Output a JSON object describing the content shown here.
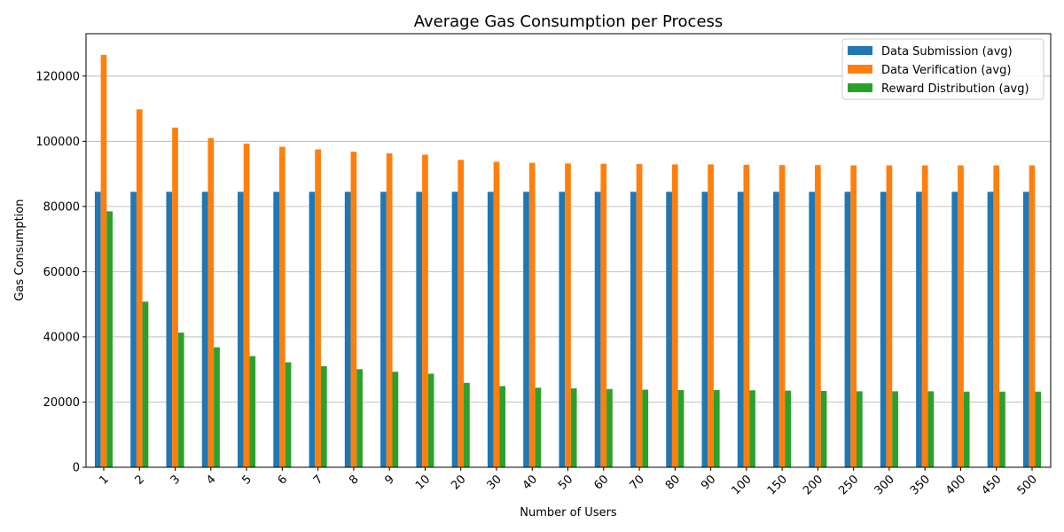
{
  "chart_data": {
    "type": "bar",
    "title": "Average Gas Consumption per Process",
    "xlabel": "Number of Users",
    "ylabel": "Gas Consumption",
    "ylim": [
      0,
      133000
    ],
    "yticks": [
      0,
      20000,
      40000,
      60000,
      80000,
      100000,
      120000
    ],
    "grid": "y",
    "legend_position": "top-right",
    "categories": [
      "1",
      "2",
      "3",
      "4",
      "5",
      "6",
      "7",
      "8",
      "9",
      "10",
      "20",
      "30",
      "40",
      "50",
      "60",
      "70",
      "80",
      "90",
      "100",
      "150",
      "200",
      "250",
      "300",
      "350",
      "400",
      "450",
      "500"
    ],
    "series": [
      {
        "name": "Data Submission (avg)",
        "color": "#1f77b4",
        "values": [
          84500,
          84500,
          84500,
          84500,
          84500,
          84500,
          84500,
          84500,
          84500,
          84500,
          84500,
          84500,
          84500,
          84500,
          84500,
          84500,
          84500,
          84500,
          84500,
          84500,
          84500,
          84500,
          84500,
          84500,
          84500,
          84500,
          84500
        ]
      },
      {
        "name": "Data Verification (avg)",
        "color": "#ff7f0e",
        "values": [
          126500,
          109800,
          104200,
          101000,
          99300,
          98300,
          97500,
          96800,
          96300,
          95900,
          94300,
          93700,
          93400,
          93200,
          93100,
          93000,
          92900,
          92900,
          92800,
          92700,
          92700,
          92600,
          92600,
          92600,
          92600,
          92600,
          92600
        ]
      },
      {
        "name": "Reward Distribution (avg)",
        "color": "#2ca02c",
        "values": [
          78500,
          50800,
          41300,
          36800,
          34100,
          32200,
          31000,
          30100,
          29300,
          28700,
          25900,
          24900,
          24400,
          24200,
          24000,
          23800,
          23700,
          23700,
          23600,
          23500,
          23400,
          23300,
          23300,
          23300,
          23200,
          23200,
          23200
        ]
      }
    ]
  }
}
